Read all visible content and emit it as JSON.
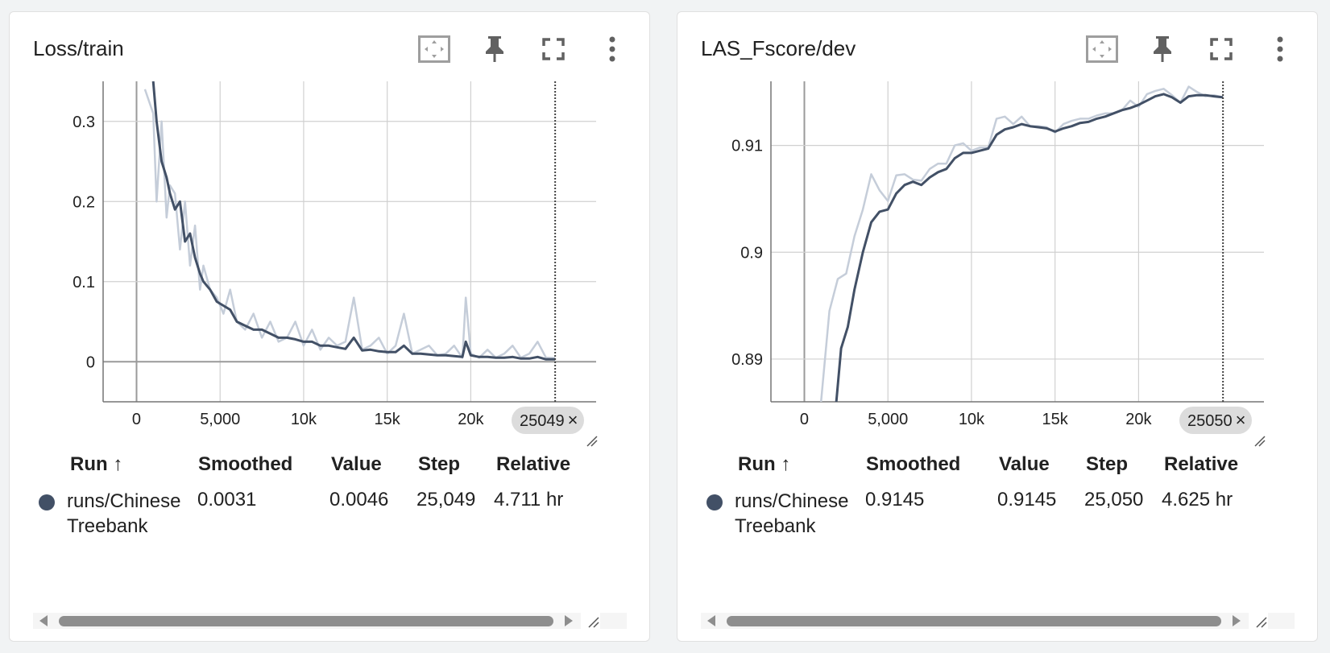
{
  "cards": [
    {
      "title": "Loss/train",
      "step_chip": "25049",
      "table": {
        "headers": [
          "Run ↑",
          "Smoothed",
          "Value",
          "Step",
          "Relative"
        ],
        "rows": [
          {
            "run": "runs/Chinese Treebank",
            "smoothed": "0.0031",
            "value": "0.0046",
            "step": "25,049",
            "relative": "4.711 hr"
          }
        ]
      }
    },
    {
      "title": "LAS_Fscore/dev",
      "step_chip": "25050",
      "table": {
        "headers": [
          "Run ↑",
          "Smoothed",
          "Value",
          "Step",
          "Relative"
        ],
        "rows": [
          {
            "run": "runs/Chinese Treebank",
            "smoothed": "0.9145",
            "value": "0.9145",
            "step": "25,050",
            "relative": "4.625 hr"
          }
        ]
      }
    }
  ],
  "toolbar_icons": [
    "fit-domain-icon",
    "pin-icon",
    "fullscreen-icon",
    "more-vert-icon"
  ],
  "colors": {
    "smoothed": "#425066",
    "raw": "#c5cdd9",
    "grid": "#d0d0d0"
  },
  "chart_data": [
    {
      "type": "line",
      "title": "Loss/train",
      "xlabel": "",
      "ylabel": "",
      "xlim": [
        -2000,
        27500
      ],
      "ylim": [
        -0.05,
        0.35
      ],
      "x_ticks": [
        0,
        5000,
        10000,
        15000,
        20000
      ],
      "x_tick_labels": [
        "0",
        "5,000",
        "10k",
        "15k",
        "20k"
      ],
      "y_ticks": [
        0,
        0.1,
        0.2,
        0.3
      ],
      "y_tick_labels": [
        "0",
        "0.1",
        "0.2",
        "0.3"
      ],
      "grid": true,
      "cursor_step": 25049,
      "series": [
        {
          "name": "runs/Chinese Treebank (raw)",
          "x": [
            500,
            1000,
            1200,
            1500,
            1800,
            2000,
            2300,
            2600,
            2900,
            3200,
            3500,
            3800,
            4000,
            4400,
            4800,
            5200,
            5600,
            6000,
            6500,
            7000,
            7500,
            8000,
            8500,
            9000,
            9500,
            10000,
            10500,
            11000,
            11500,
            12000,
            12500,
            13000,
            13500,
            14000,
            14500,
            15000,
            15500,
            16000,
            16500,
            17000,
            17500,
            18000,
            18500,
            19000,
            19500,
            19700,
            20000,
            20500,
            21000,
            21500,
            22000,
            22500,
            23000,
            23500,
            24000,
            24500,
            25049
          ],
          "y": [
            0.34,
            0.31,
            0.2,
            0.3,
            0.18,
            0.22,
            0.21,
            0.14,
            0.2,
            0.12,
            0.17,
            0.09,
            0.12,
            0.09,
            0.08,
            0.06,
            0.09,
            0.05,
            0.04,
            0.06,
            0.03,
            0.05,
            0.025,
            0.03,
            0.05,
            0.02,
            0.04,
            0.015,
            0.03,
            0.02,
            0.025,
            0.08,
            0.015,
            0.02,
            0.03,
            0.01,
            0.02,
            0.06,
            0.01,
            0.015,
            0.02,
            0.008,
            0.01,
            0.02,
            0.005,
            0.08,
            0.01,
            0.005,
            0.015,
            0.005,
            0.01,
            0.02,
            0.005,
            0.01,
            0.025,
            0.005,
            0.0046
          ]
        },
        {
          "name": "runs/Chinese Treebank (smoothed)",
          "x": [
            1000,
            1200,
            1500,
            1800,
            2000,
            2300,
            2600,
            2900,
            3200,
            3500,
            3800,
            4000,
            4400,
            4800,
            5200,
            5600,
            6000,
            6500,
            7000,
            7500,
            8000,
            8500,
            9000,
            9500,
            10000,
            10500,
            11000,
            11500,
            12000,
            12500,
            13000,
            13500,
            14000,
            14500,
            15000,
            15500,
            16000,
            16500,
            17000,
            17500,
            18000,
            18500,
            19000,
            19500,
            19700,
            20000,
            20500,
            21000,
            21500,
            22000,
            22500,
            23000,
            23500,
            24000,
            24500,
            25049
          ],
          "y": [
            0.35,
            0.3,
            0.25,
            0.23,
            0.21,
            0.19,
            0.2,
            0.15,
            0.16,
            0.13,
            0.11,
            0.1,
            0.09,
            0.075,
            0.07,
            0.065,
            0.05,
            0.045,
            0.04,
            0.04,
            0.035,
            0.03,
            0.03,
            0.028,
            0.025,
            0.025,
            0.02,
            0.02,
            0.018,
            0.016,
            0.03,
            0.014,
            0.015,
            0.013,
            0.012,
            0.012,
            0.02,
            0.01,
            0.01,
            0.009,
            0.008,
            0.008,
            0.007,
            0.006,
            0.025,
            0.008,
            0.006,
            0.006,
            0.005,
            0.005,
            0.006,
            0.004,
            0.004,
            0.006,
            0.003,
            0.0031
          ]
        }
      ]
    },
    {
      "type": "line",
      "title": "LAS_Fscore/dev",
      "xlabel": "",
      "ylabel": "",
      "xlim": [
        -2000,
        27500
      ],
      "ylim": [
        0.886,
        0.916
      ],
      "x_ticks": [
        0,
        5000,
        10000,
        15000,
        20000
      ],
      "x_tick_labels": [
        "0",
        "5,000",
        "10k",
        "15k",
        "20k"
      ],
      "y_ticks": [
        0.89,
        0.9,
        0.91
      ],
      "y_tick_labels": [
        "0.89",
        "0.9",
        "0.91"
      ],
      "grid": true,
      "cursor_step": 25050,
      "series": [
        {
          "name": "runs/Chinese Treebank (raw)",
          "x": [
            1000,
            1500,
            2000,
            2500,
            3000,
            3500,
            4000,
            4500,
            5000,
            5500,
            6000,
            6500,
            7000,
            7500,
            8000,
            8500,
            9000,
            9500,
            10000,
            10500,
            11000,
            11500,
            12000,
            12500,
            13000,
            13500,
            14000,
            14500,
            15000,
            15500,
            16000,
            16500,
            17000,
            17500,
            18000,
            18500,
            19000,
            19500,
            20000,
            20500,
            21000,
            21500,
            22000,
            22500,
            23000,
            23500,
            24000,
            24500,
            25050
          ],
          "y": [
            0.886,
            0.8945,
            0.8975,
            0.898,
            0.9015,
            0.904,
            0.9073,
            0.9058,
            0.9048,
            0.9072,
            0.9073,
            0.9068,
            0.9067,
            0.9078,
            0.9083,
            0.9083,
            0.91,
            0.9102,
            0.9095,
            0.9098,
            0.9098,
            0.9125,
            0.9127,
            0.912,
            0.9127,
            0.9118,
            0.9118,
            0.9117,
            0.9112,
            0.912,
            0.9123,
            0.9125,
            0.9125,
            0.9128,
            0.913,
            0.913,
            0.9133,
            0.9142,
            0.9136,
            0.9148,
            0.9151,
            0.9153,
            0.9147,
            0.914,
            0.9155,
            0.915,
            0.9146,
            0.9147,
            0.9145
          ]
        },
        {
          "name": "runs/Chinese Treebank (smoothed)",
          "x": [
            1400,
            1800,
            2200,
            2600,
            3000,
            3500,
            4000,
            4500,
            5000,
            5500,
            6000,
            6500,
            7000,
            7500,
            8000,
            8500,
            9000,
            9500,
            10000,
            10500,
            11000,
            11500,
            12000,
            12500,
            13000,
            13500,
            14000,
            14500,
            15000,
            15500,
            16000,
            16500,
            17000,
            17500,
            18000,
            18500,
            19000,
            19500,
            20000,
            20500,
            21000,
            21500,
            22000,
            22500,
            23000,
            23500,
            24000,
            24500,
            25050
          ],
          "y": [
            0.876,
            0.884,
            0.891,
            0.893,
            0.8965,
            0.9,
            0.9028,
            0.9038,
            0.904,
            0.9055,
            0.9063,
            0.9066,
            0.9063,
            0.907,
            0.9075,
            0.9078,
            0.9088,
            0.9093,
            0.9093,
            0.9095,
            0.9097,
            0.911,
            0.9115,
            0.9117,
            0.912,
            0.9118,
            0.9117,
            0.9116,
            0.9113,
            0.9116,
            0.9118,
            0.9121,
            0.9122,
            0.9125,
            0.9127,
            0.913,
            0.9133,
            0.9135,
            0.9138,
            0.9142,
            0.9146,
            0.9148,
            0.9145,
            0.914,
            0.9146,
            0.9147,
            0.9147,
            0.9146,
            0.9145
          ]
        }
      ]
    }
  ]
}
